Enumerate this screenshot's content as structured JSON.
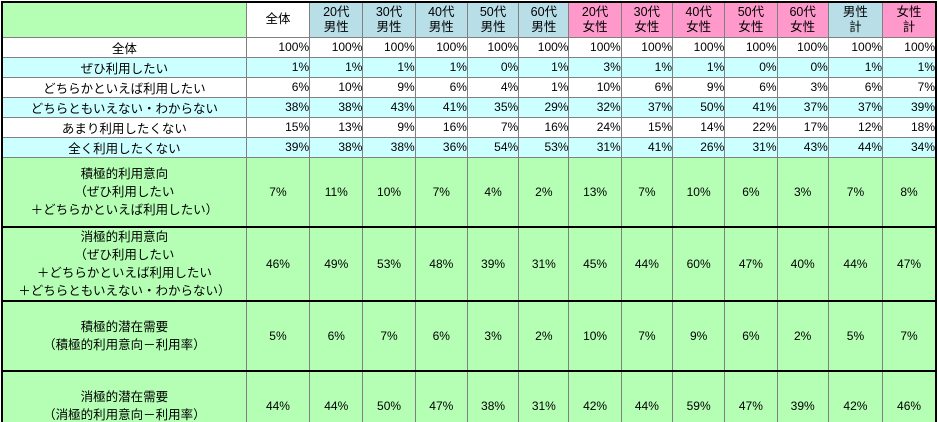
{
  "table": {
    "corner_label": "",
    "columns": [
      {
        "label": "全体",
        "bg": "white"
      },
      {
        "label": "20代\n男性",
        "bg": "blue"
      },
      {
        "label": "30代\n男性",
        "bg": "blue"
      },
      {
        "label": "40代\n男性",
        "bg": "blue"
      },
      {
        "label": "50代\n男性",
        "bg": "blue"
      },
      {
        "label": "60代\n男性",
        "bg": "blue"
      },
      {
        "label": "20代\n女性",
        "bg": "pink"
      },
      {
        "label": "30代\n女性",
        "bg": "pink"
      },
      {
        "label": "40代\n女性",
        "bg": "pink"
      },
      {
        "label": "50代\n女性",
        "bg": "pink"
      },
      {
        "label": "60代\n女性",
        "bg": "pink"
      },
      {
        "label": "男性\n計",
        "bg": "blue"
      },
      {
        "label": "女性\n計",
        "bg": "pink"
      }
    ],
    "rows": [
      {
        "label": "全体",
        "bg": "white",
        "values": [
          "100%",
          "100%",
          "100%",
          "100%",
          "100%",
          "100%",
          "100%",
          "100%",
          "100%",
          "100%",
          "100%",
          "100%",
          "100%"
        ]
      },
      {
        "label": "ぜひ利用したい",
        "bg": "cyan",
        "values": [
          "1%",
          "1%",
          "1%",
          "1%",
          "0%",
          "1%",
          "3%",
          "1%",
          "1%",
          "0%",
          "0%",
          "1%",
          "1%"
        ]
      },
      {
        "label": "どちらかといえば利用したい",
        "bg": "white",
        "values": [
          "6%",
          "10%",
          "9%",
          "6%",
          "4%",
          "1%",
          "10%",
          "6%",
          "9%",
          "6%",
          "3%",
          "6%",
          "7%"
        ]
      },
      {
        "label": "どちらともいえない・わからない",
        "bg": "cyan",
        "values": [
          "38%",
          "38%",
          "43%",
          "41%",
          "35%",
          "29%",
          "32%",
          "37%",
          "50%",
          "41%",
          "37%",
          "37%",
          "39%"
        ]
      },
      {
        "label": "あまり利用したくない",
        "bg": "white",
        "values": [
          "15%",
          "13%",
          "9%",
          "16%",
          "7%",
          "16%",
          "24%",
          "15%",
          "14%",
          "22%",
          "17%",
          "12%",
          "18%"
        ]
      },
      {
        "label": "全く利用したくない",
        "bg": "cyan",
        "values": [
          "39%",
          "38%",
          "38%",
          "36%",
          "54%",
          "53%",
          "31%",
          "41%",
          "26%",
          "31%",
          "43%",
          "44%",
          "34%"
        ]
      }
    ],
    "summary_rows": [
      {
        "label": "積極的利用意向\n（ぜひ利用したい\n＋どちらかといえば利用したい）",
        "values": [
          "7%",
          "11%",
          "10%",
          "7%",
          "4%",
          "2%",
          "13%",
          "7%",
          "10%",
          "6%",
          "3%",
          "7%",
          "8%"
        ]
      },
      {
        "label": "消極的利用意向\n（ぜひ利用したい\n＋どちらかといえば利用したい\n＋どちらともいえない・わからない）",
        "values": [
          "46%",
          "49%",
          "53%",
          "48%",
          "39%",
          "31%",
          "45%",
          "44%",
          "60%",
          "47%",
          "40%",
          "44%",
          "47%"
        ]
      },
      {
        "label": "積極的潜在需要\n（積極的利用意向－利用率）",
        "values": [
          "5%",
          "6%",
          "7%",
          "6%",
          "3%",
          "2%",
          "10%",
          "7%",
          "9%",
          "6%",
          "2%",
          "5%",
          "7%"
        ]
      },
      {
        "label": "消極的潜在需要\n（消極的利用意向－利用率）",
        "values": [
          "44%",
          "44%",
          "50%",
          "47%",
          "38%",
          "31%",
          "42%",
          "44%",
          "59%",
          "47%",
          "39%",
          "42%",
          "46%"
        ]
      }
    ]
  },
  "colors": {
    "green": "#B4FFB4",
    "cyan": "#CCFFFF",
    "blue": "#B8DEE8",
    "pink": "#FF99CC",
    "grid": "#808080",
    "frame": "#000000"
  }
}
